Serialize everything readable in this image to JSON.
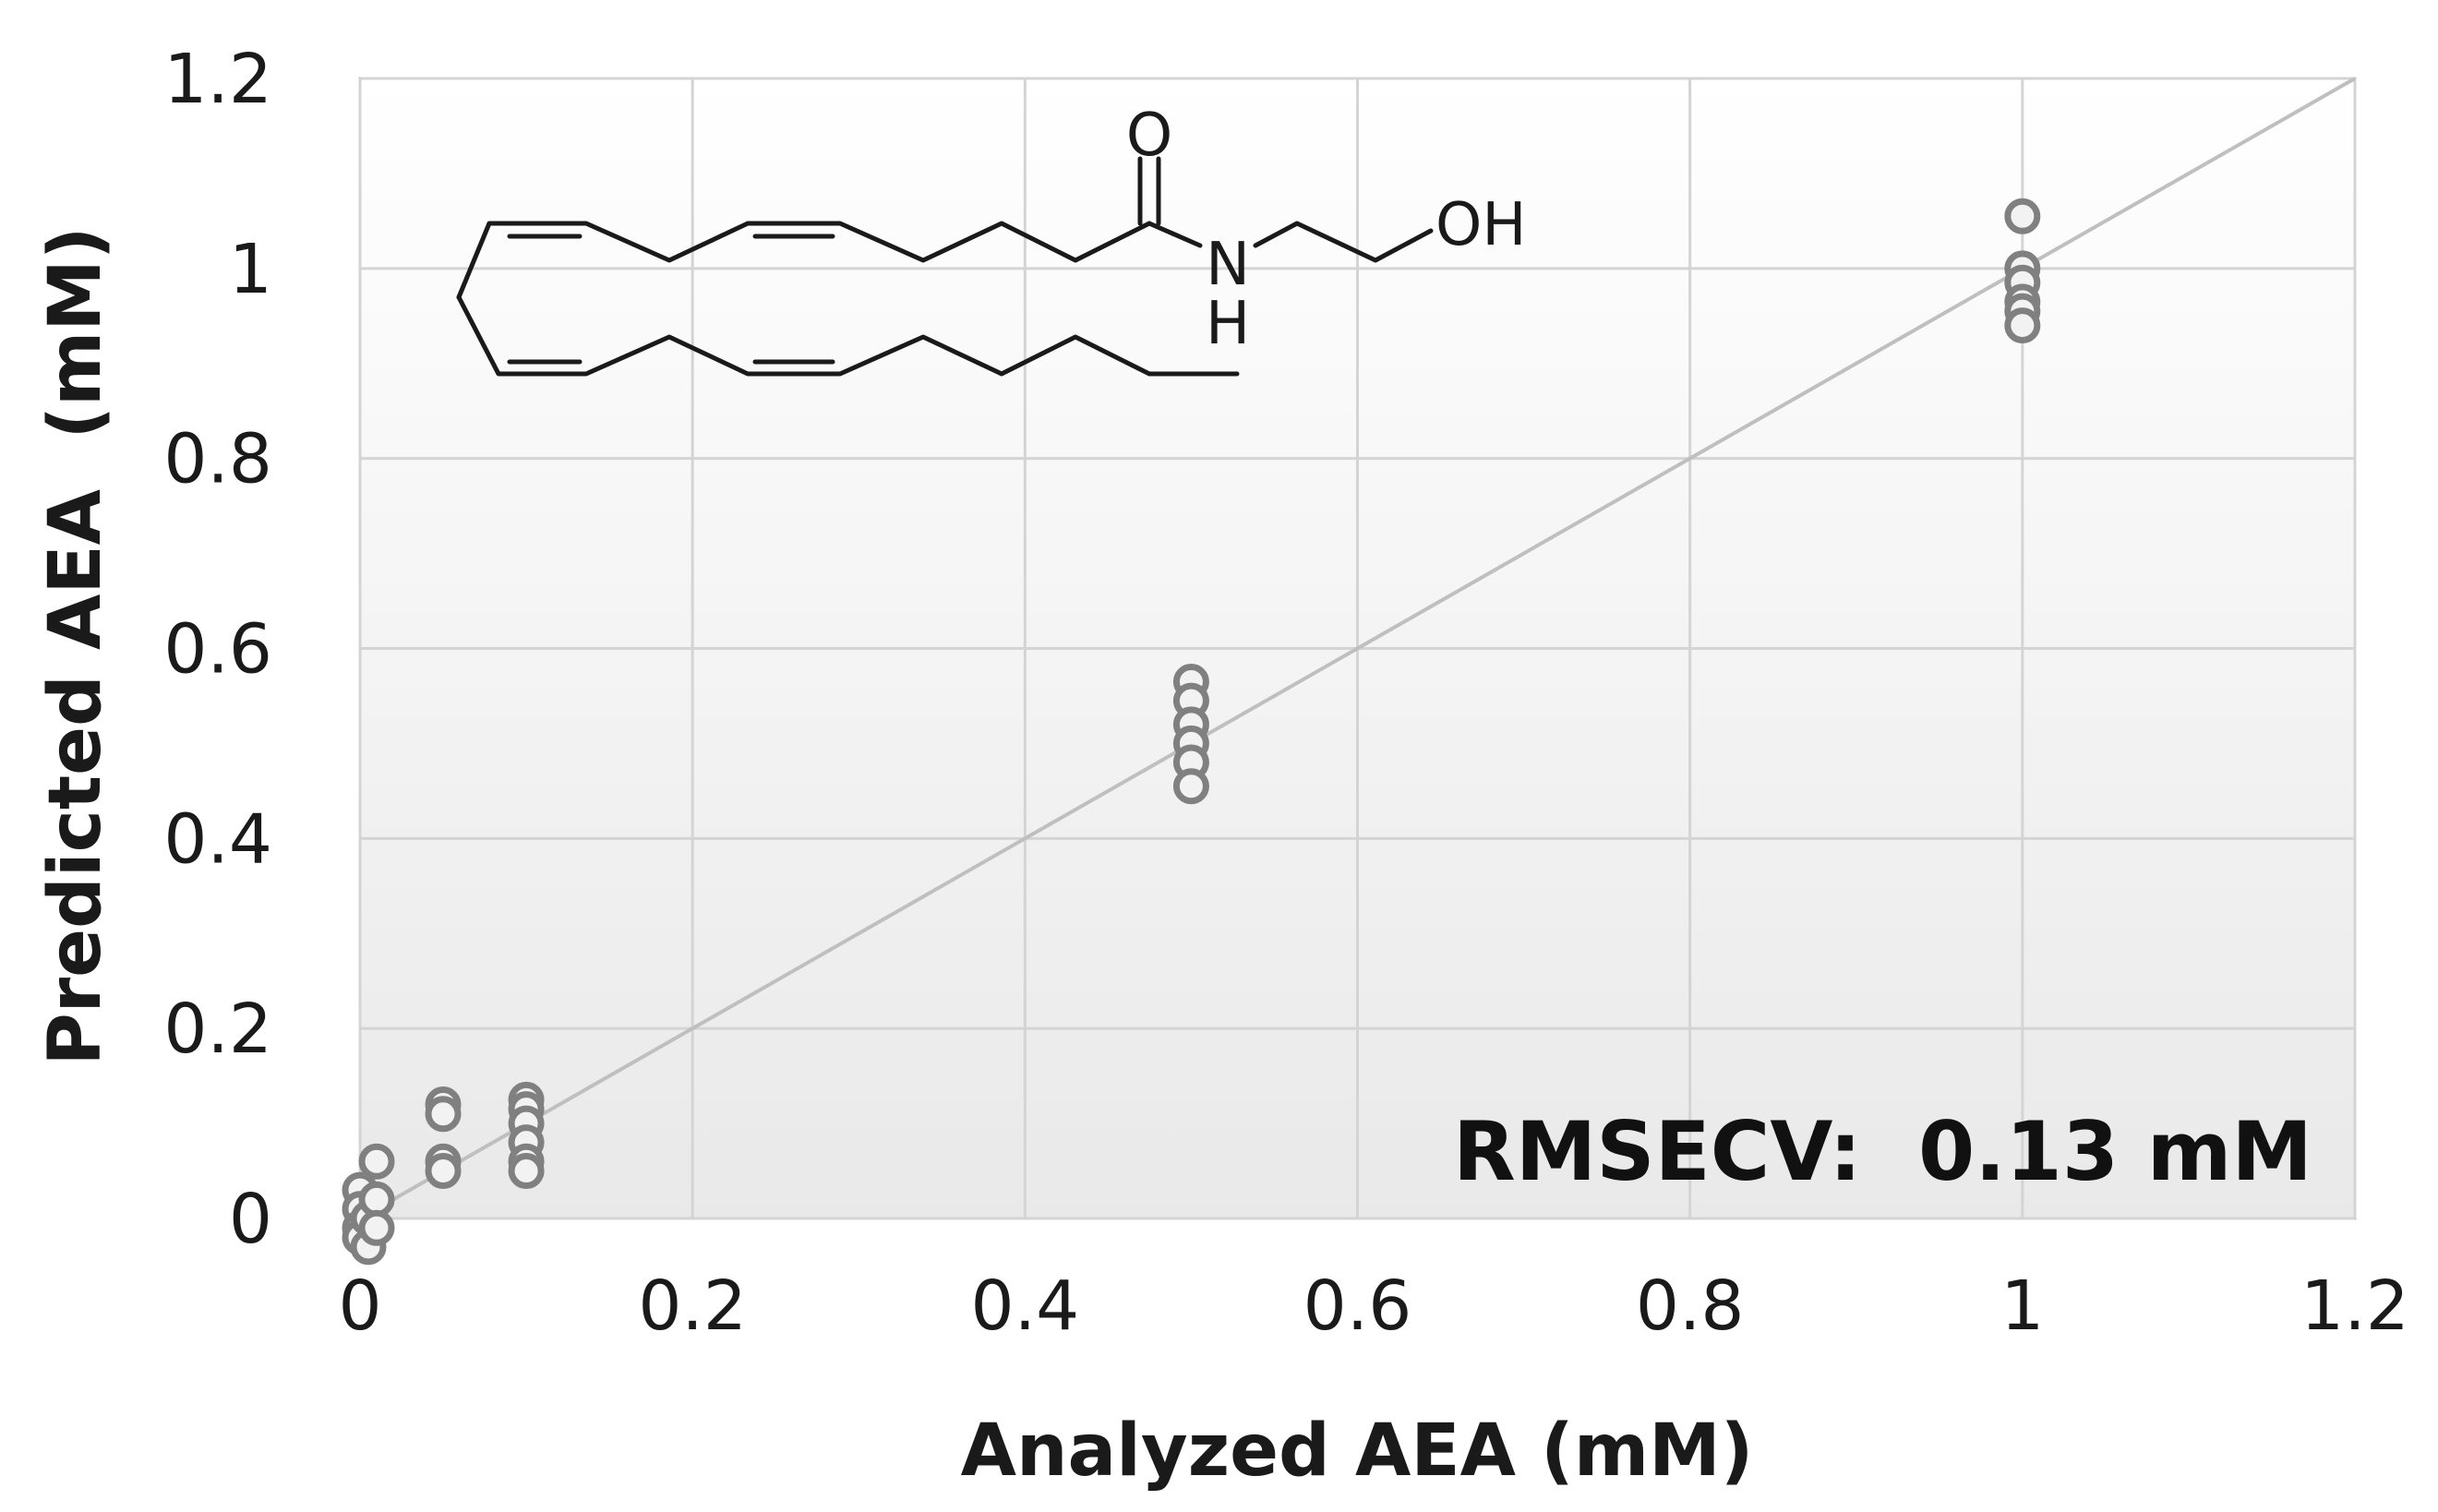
{
  "chart_data": {
    "type": "scatter",
    "title": "",
    "xlabel": "Analyzed AEA (mM)",
    "ylabel": "Predicted AEA  (mM)",
    "xlim": [
      0,
      1.2
    ],
    "ylim": [
      0,
      1.2
    ],
    "x_ticks": [
      "0",
      "0.2",
      "0.4",
      "0.6",
      "0.8",
      "1",
      "1.2"
    ],
    "y_ticks": [
      "0",
      "0.2",
      "0.4",
      "0.6",
      "0.8",
      "1",
      "1.2"
    ],
    "grid": true,
    "legend": "none",
    "annotation": "RMSECV:  0.13 mM",
    "reference_line": {
      "x": [
        0,
        1.2
      ],
      "y": [
        0,
        1.2
      ]
    },
    "marker_color": "#808080",
    "points": [
      {
        "x": 0.0,
        "y": 0.03
      },
      {
        "x": 0.0,
        "y": 0.01
      },
      {
        "x": 0.0,
        "y": -0.01
      },
      {
        "x": 0.0,
        "y": -0.02
      },
      {
        "x": 0.005,
        "y": 0.0
      },
      {
        "x": 0.005,
        "y": -0.03
      },
      {
        "x": 0.01,
        "y": 0.06
      },
      {
        "x": 0.01,
        "y": 0.02
      },
      {
        "x": 0.01,
        "y": -0.01
      },
      {
        "x": 0.05,
        "y": 0.12
      },
      {
        "x": 0.05,
        "y": 0.11
      },
      {
        "x": 0.05,
        "y": 0.06
      },
      {
        "x": 0.05,
        "y": 0.05
      },
      {
        "x": 0.1,
        "y": 0.125
      },
      {
        "x": 0.1,
        "y": 0.115
      },
      {
        "x": 0.1,
        "y": 0.1
      },
      {
        "x": 0.1,
        "y": 0.08
      },
      {
        "x": 0.1,
        "y": 0.06
      },
      {
        "x": 0.1,
        "y": 0.05
      },
      {
        "x": 0.5,
        "y": 0.565
      },
      {
        "x": 0.5,
        "y": 0.545
      },
      {
        "x": 0.5,
        "y": 0.52
      },
      {
        "x": 0.5,
        "y": 0.5
      },
      {
        "x": 0.5,
        "y": 0.48
      },
      {
        "x": 0.5,
        "y": 0.455
      },
      {
        "x": 1.0,
        "y": 1.055
      },
      {
        "x": 1.0,
        "y": 1.0
      },
      {
        "x": 1.0,
        "y": 0.985
      },
      {
        "x": 1.0,
        "y": 0.965
      },
      {
        "x": 1.0,
        "y": 0.955
      },
      {
        "x": 1.0,
        "y": 0.94
      }
    ]
  },
  "molecule": {
    "name": "anandamide",
    "labels": {
      "carbonyl_o": "O",
      "amide_n": "N",
      "amide_h": "H",
      "hydroxyl": "OH"
    }
  }
}
